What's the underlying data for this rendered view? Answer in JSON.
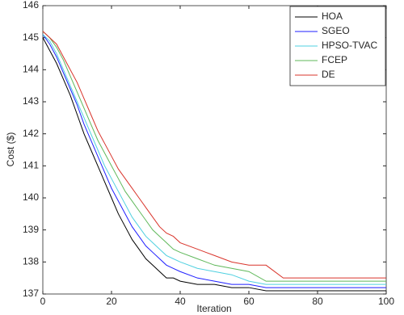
{
  "chart_data": {
    "type": "line",
    "x_label": "Iteration",
    "y_label": "Cost ($)",
    "x": [
      0,
      2,
      4,
      6,
      8,
      10,
      12,
      14,
      16,
      18,
      20,
      22,
      24,
      26,
      28,
      30,
      32,
      34,
      36,
      38,
      40,
      45,
      50,
      55,
      60,
      65,
      70,
      80,
      90,
      100
    ],
    "series": [
      {
        "name": "HOA",
        "color": "#000000",
        "values": [
          145.0,
          144.6,
          144.2,
          143.7,
          143.2,
          142.6,
          142.0,
          141.5,
          141.0,
          140.5,
          140.0,
          139.5,
          139.1,
          138.7,
          138.4,
          138.1,
          137.9,
          137.7,
          137.5,
          137.5,
          137.4,
          137.3,
          137.3,
          137.2,
          137.2,
          137.1,
          137.1,
          137.1,
          137.1,
          137.1
        ]
      },
      {
        "name": "SGEO",
        "color": "#1f1fff",
        "values": [
          145.1,
          144.8,
          144.4,
          143.9,
          143.4,
          142.9,
          142.3,
          141.8,
          141.3,
          140.8,
          140.3,
          139.9,
          139.5,
          139.1,
          138.8,
          138.5,
          138.3,
          138.1,
          137.9,
          137.8,
          137.7,
          137.5,
          137.4,
          137.3,
          137.3,
          137.2,
          137.2,
          137.2,
          137.2,
          137.2
        ]
      },
      {
        "name": "HPSO-TVAC",
        "color": "#4fd0e0",
        "values": [
          145.1,
          144.9,
          144.5,
          144.0,
          143.5,
          143.0,
          142.5,
          142.0,
          141.5,
          141.0,
          140.6,
          140.2,
          139.8,
          139.4,
          139.1,
          138.8,
          138.6,
          138.4,
          138.2,
          138.1,
          138.0,
          137.8,
          137.7,
          137.6,
          137.4,
          137.3,
          137.3,
          137.3,
          137.3,
          137.3
        ]
      },
      {
        "name": "FCEP",
        "color": "#5fb85a",
        "values": [
          145.2,
          145.0,
          144.7,
          144.3,
          143.8,
          143.3,
          142.8,
          142.3,
          141.8,
          141.4,
          141.0,
          140.6,
          140.2,
          139.9,
          139.6,
          139.3,
          139.0,
          138.8,
          138.6,
          138.4,
          138.3,
          138.1,
          137.9,
          137.8,
          137.7,
          137.4,
          137.4,
          137.4,
          137.4,
          137.4
        ]
      },
      {
        "name": "DE",
        "color": "#d9342b",
        "values": [
          145.2,
          145.0,
          144.8,
          144.4,
          144.0,
          143.6,
          143.1,
          142.6,
          142.1,
          141.7,
          141.3,
          140.9,
          140.6,
          140.3,
          140.0,
          139.7,
          139.4,
          139.1,
          138.9,
          138.8,
          138.6,
          138.4,
          138.2,
          138.0,
          137.9,
          137.9,
          137.5,
          137.5,
          137.5,
          137.5
        ]
      }
    ],
    "xlim": [
      0,
      100
    ],
    "xticks": [
      0,
      20,
      40,
      60,
      80,
      100
    ],
    "ylim": [
      137,
      146
    ],
    "yticks": [
      137,
      138,
      139,
      140,
      141,
      142,
      143,
      144,
      145,
      146
    ],
    "legend": "top-right"
  }
}
